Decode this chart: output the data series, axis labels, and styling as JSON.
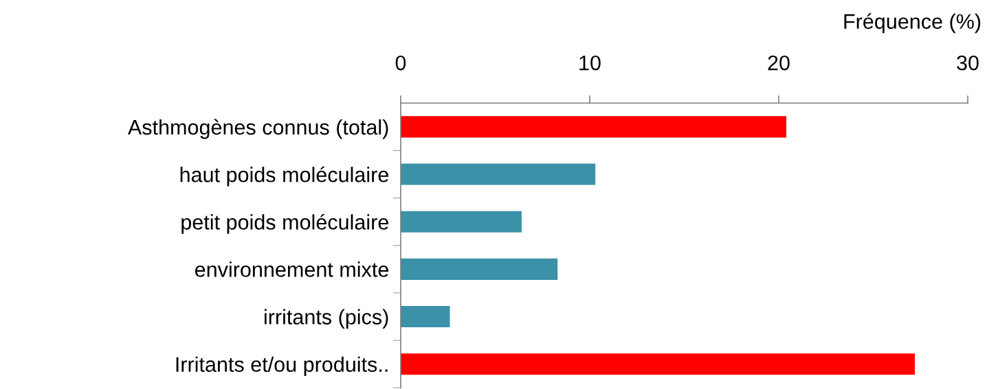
{
  "chart_data": {
    "type": "bar",
    "orientation": "horizontal",
    "xlabel": "Fréquence (%)",
    "categories": [
      "Asthmogènes connus (total)",
      "haut poids moléculaire",
      "petit poids moléculaire",
      "environnement mixte",
      "irritants (pics)",
      "Irritants et/ou produits.."
    ],
    "values": [
      20.4,
      10.3,
      6.4,
      8.3,
      2.6,
      27.2
    ],
    "colors": [
      "#ff0000",
      "#3a91a8",
      "#3a91a8",
      "#3a91a8",
      "#3a91a8",
      "#ff0000"
    ],
    "xlim": [
      0,
      30
    ],
    "xticks": [
      0,
      10,
      20,
      30
    ],
    "grid": false,
    "legend": false
  }
}
